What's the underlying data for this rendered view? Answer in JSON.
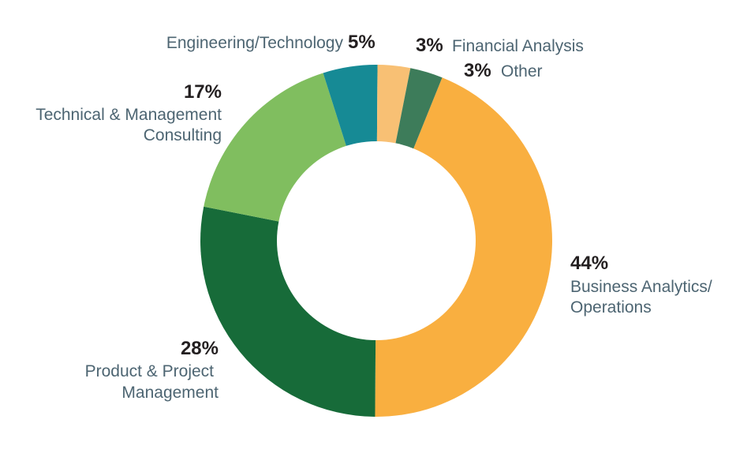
{
  "chart_data": {
    "type": "pie",
    "title": "",
    "slices": [
      {
        "label": "Business Analytics/ Operations",
        "label_lines": [
          "Business Analytics/",
          "Operations"
        ],
        "percent_text": "44%",
        "value": 44,
        "color": "#f9af40"
      },
      {
        "label": "Product & Project Management",
        "label_lines": [
          "Product & Project",
          "Management"
        ],
        "percent_text": "28%",
        "value": 28,
        "color": "#176b39"
      },
      {
        "label": "Technical & Management Consulting",
        "label_lines": [
          "Technical & Management",
          "Consulting"
        ],
        "percent_text": "17%",
        "value": 17,
        "color": "#80be5f"
      },
      {
        "label": "Engineering/Technology",
        "label_lines": [
          "Engineering/Technology"
        ],
        "percent_text": "5%",
        "value": 5,
        "color": "#168a95"
      },
      {
        "label": "Financial Analysis",
        "label_lines": [
          "Financial Analysis"
        ],
        "percent_text": "3%",
        "value": 3,
        "color": "#f8c074"
      },
      {
        "label": "Other",
        "label_lines": [
          "Other"
        ],
        "percent_text": "3%",
        "value": 3,
        "color": "#3d7c5a"
      }
    ]
  }
}
